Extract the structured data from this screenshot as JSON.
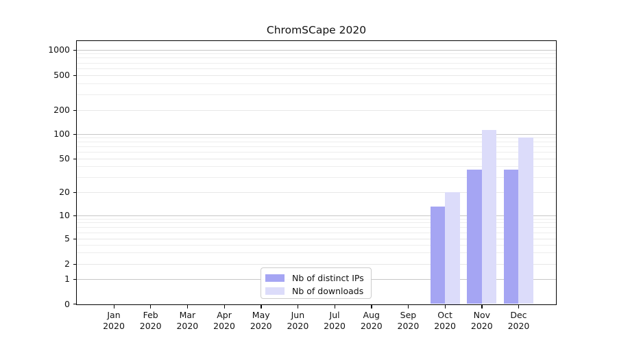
{
  "title": "ChromSCape 2020",
  "legend": {
    "position": "inside-bottom-center",
    "items": [
      {
        "label": "Nb of distinct IPs",
        "color": "#a5a5f3"
      },
      {
        "label": "Nb of downloads",
        "color": "#dcdcfa"
      }
    ]
  },
  "chart_data": {
    "type": "bar",
    "title": "ChromSCape 2020",
    "categories": [
      "Jan 2020",
      "Feb 2020",
      "Mar 2020",
      "Apr 2020",
      "May 2020",
      "Jun 2020",
      "Jul 2020",
      "Aug 2020",
      "Sep 2020",
      "Oct 2020",
      "Nov 2020",
      "Dec 2020"
    ],
    "series": [
      {
        "name": "Nb of distinct IPs",
        "color": "#a5a5f3",
        "values": [
          0,
          0,
          0,
          0,
          0,
          0,
          0,
          0,
          0,
          13,
          37,
          37
        ]
      },
      {
        "name": "Nb of downloads",
        "color": "#dcdcfa",
        "values": [
          0,
          0,
          0,
          0,
          0,
          0,
          0,
          0,
          0,
          20,
          113,
          90
        ]
      }
    ],
    "xlabel": "",
    "ylabel": "",
    "y_axis": {
      "scale": "symlog",
      "tick_values": [
        1000,
        500,
        200,
        100,
        50,
        20,
        10,
        5,
        2,
        1,
        0
      ],
      "tick_labels": [
        "1000",
        "500",
        "200",
        "100",
        "50",
        "20",
        "10",
        "5",
        "2",
        "1",
        "0"
      ],
      "decade_values": [
        1,
        10,
        100,
        1000
      ],
      "minor_tick_values": [
        3,
        4,
        6,
        7,
        8,
        9,
        30,
        40,
        60,
        70,
        80,
        90,
        300,
        400,
        600,
        700,
        800,
        900
      ],
      "ylim": [
        0,
        1275
      ]
    },
    "grid": "horizontal-only",
    "legend_position": "inside bottom-center"
  }
}
